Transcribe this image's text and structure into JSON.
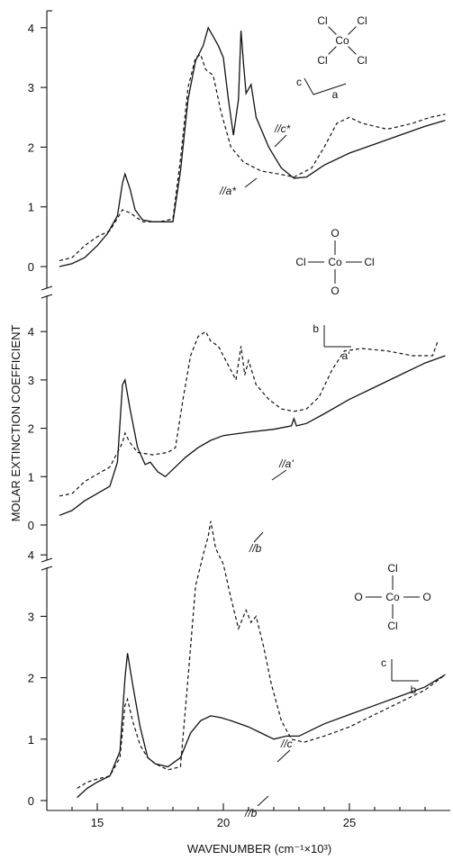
{
  "chart_data": {
    "type": "line",
    "xlabel": "WAVENUMBER (cm⁻¹×10³)",
    "ylabel": "MOLAR EXTINCTION COEFFICIENT",
    "xlim": [
      13,
      29
    ],
    "x_ticks": [
      "15",
      "20",
      "25"
    ],
    "y_ticks": [
      "0",
      "1",
      "2",
      "3",
      "4"
    ],
    "panels": [
      {
        "ylim": [
          -0.2,
          4.4
        ],
        "molecule": {
          "top": [
            "Cl",
            "Cl"
          ],
          "center": "Co",
          "bottom": [
            "Cl",
            "Cl"
          ]
        },
        "axes_labels": [
          "c",
          "a"
        ],
        "series": [
          {
            "name": "//c*",
            "style": "solid",
            "points": [
              [
                13.5,
                0
              ],
              [
                14.0,
                0.05
              ],
              [
                14.5,
                0.15
              ],
              [
                15.0,
                0.35
              ],
              [
                15.4,
                0.55
              ],
              [
                15.8,
                0.85
              ],
              [
                16.0,
                1.4
              ],
              [
                16.1,
                1.55
              ],
              [
                16.3,
                1.3
              ],
              [
                16.5,
                0.95
              ],
              [
                16.8,
                0.78
              ],
              [
                17.2,
                0.75
              ],
              [
                18.0,
                0.75
              ],
              [
                18.3,
                1.6
              ],
              [
                18.6,
                2.8
              ],
              [
                18.9,
                3.45
              ],
              [
                19.2,
                3.7
              ],
              [
                19.4,
                4.0
              ],
              [
                19.6,
                3.85
              ],
              [
                19.8,
                3.7
              ],
              [
                20.0,
                3.5
              ],
              [
                20.2,
                2.8
              ],
              [
                20.4,
                2.2
              ],
              [
                20.6,
                2.8
              ],
              [
                20.7,
                3.95
              ],
              [
                20.8,
                3.4
              ],
              [
                20.9,
                2.9
              ],
              [
                21.1,
                3.05
              ],
              [
                21.3,
                2.5
              ],
              [
                21.8,
                2.0
              ],
              [
                22.3,
                1.65
              ],
              [
                22.8,
                1.48
              ],
              [
                23.3,
                1.5
              ],
              [
                24.0,
                1.7
              ],
              [
                25.0,
                1.9
              ],
              [
                26.0,
                2.05
              ],
              [
                27.0,
                2.2
              ],
              [
                28.0,
                2.35
              ],
              [
                28.8,
                2.45
              ]
            ]
          },
          {
            "name": "//a*",
            "style": "dashed",
            "points": [
              [
                13.5,
                0.1
              ],
              [
                14.0,
                0.15
              ],
              [
                14.5,
                0.35
              ],
              [
                15.0,
                0.5
              ],
              [
                15.5,
                0.6
              ],
              [
                16.0,
                0.95
              ],
              [
                16.3,
                0.9
              ],
              [
                16.8,
                0.75
              ],
              [
                17.5,
                0.75
              ],
              [
                18.0,
                0.8
              ],
              [
                18.3,
                1.8
              ],
              [
                18.6,
                3.0
              ],
              [
                18.9,
                3.5
              ],
              [
                19.1,
                3.55
              ],
              [
                19.3,
                3.3
              ],
              [
                19.6,
                3.2
              ],
              [
                19.9,
                2.6
              ],
              [
                20.3,
                2.0
              ],
              [
                20.8,
                1.75
              ],
              [
                21.5,
                1.6
              ],
              [
                22.2,
                1.55
              ],
              [
                22.8,
                1.5
              ],
              [
                23.5,
                1.65
              ],
              [
                24.0,
                2.0
              ],
              [
                24.5,
                2.4
              ],
              [
                25.0,
                2.5
              ],
              [
                25.5,
                2.4
              ],
              [
                26.5,
                2.3
              ],
              [
                27.5,
                2.4
              ],
              [
                28.2,
                2.5
              ],
              [
                28.8,
                2.55
              ]
            ]
          }
        ]
      },
      {
        "ylim": [
          -0.2,
          4.2
        ],
        "molecule": {
          "top": [
            "O"
          ],
          "center": "Co",
          "left": "Cl",
          "right": "Cl",
          "bottom": [
            "O"
          ]
        },
        "axes_labels": [
          "b",
          "a'"
        ],
        "series": [
          {
            "name": "//b",
            "style": "solid",
            "points": [
              [
                13.5,
                0.2
              ],
              [
                14.0,
                0.3
              ],
              [
                14.5,
                0.5
              ],
              [
                15.0,
                0.65
              ],
              [
                15.5,
                0.8
              ],
              [
                15.8,
                1.3
              ],
              [
                16.0,
                2.9
              ],
              [
                16.1,
                3.0
              ],
              [
                16.3,
                2.4
              ],
              [
                16.6,
                1.6
              ],
              [
                16.9,
                1.25
              ],
              [
                17.1,
                1.3
              ],
              [
                17.4,
                1.1
              ],
              [
                17.7,
                1.0
              ],
              [
                18.0,
                1.15
              ],
              [
                18.5,
                1.4
              ],
              [
                19.0,
                1.6
              ],
              [
                19.5,
                1.75
              ],
              [
                20.0,
                1.85
              ],
              [
                21.0,
                1.92
              ],
              [
                22.0,
                1.98
              ],
              [
                22.7,
                2.05
              ],
              [
                22.8,
                2.2
              ],
              [
                22.9,
                2.05
              ],
              [
                23.3,
                2.1
              ],
              [
                24.0,
                2.3
              ],
              [
                25.0,
                2.6
              ],
              [
                26.0,
                2.85
              ],
              [
                27.0,
                3.1
              ],
              [
                28.0,
                3.35
              ],
              [
                28.8,
                3.5
              ]
            ]
          },
          {
            "name": "//a'",
            "style": "dashed",
            "points": [
              [
                13.5,
                0.6
              ],
              [
                14.0,
                0.65
              ],
              [
                14.5,
                0.9
              ],
              [
                15.0,
                1.05
              ],
              [
                15.5,
                1.2
              ],
              [
                16.0,
                1.7
              ],
              [
                16.1,
                1.9
              ],
              [
                16.3,
                1.7
              ],
              [
                16.6,
                1.5
              ],
              [
                17.2,
                1.45
              ],
              [
                17.8,
                1.5
              ],
              [
                18.1,
                1.6
              ],
              [
                18.4,
                2.6
              ],
              [
                18.7,
                3.5
              ],
              [
                19.0,
                3.9
              ],
              [
                19.3,
                4.0
              ],
              [
                19.5,
                3.8
              ],
              [
                19.8,
                3.7
              ],
              [
                20.2,
                3.3
              ],
              [
                20.5,
                3.0
              ],
              [
                20.7,
                3.7
              ],
              [
                20.85,
                3.1
              ],
              [
                21.0,
                3.4
              ],
              [
                21.3,
                2.9
              ],
              [
                21.8,
                2.6
              ],
              [
                22.3,
                2.4
              ],
              [
                22.8,
                2.35
              ],
              [
                23.3,
                2.4
              ],
              [
                23.8,
                2.65
              ],
              [
                24.3,
                3.2
              ],
              [
                24.8,
                3.6
              ],
              [
                25.5,
                3.65
              ],
              [
                26.5,
                3.6
              ],
              [
                27.5,
                3.5
              ],
              [
                28.3,
                3.5
              ],
              [
                28.5,
                3.8
              ]
            ]
          }
        ]
      },
      {
        "ylim": [
          -0.2,
          4.7
        ],
        "molecule": {
          "top": [
            "Cl"
          ],
          "center": "Co",
          "left": "O",
          "right": "O",
          "bottom": [
            "Cl"
          ]
        },
        "axes_labels": [
          "c",
          "b"
        ],
        "series": [
          {
            "name": "//b",
            "style": "solid",
            "points": [
              [
                14.2,
                0.05
              ],
              [
                14.6,
                0.2
              ],
              [
                15.0,
                0.3
              ],
              [
                15.5,
                0.4
              ],
              [
                15.9,
                0.8
              ],
              [
                16.1,
                2.0
              ],
              [
                16.2,
                2.4
              ],
              [
                16.4,
                1.9
              ],
              [
                16.7,
                1.2
              ],
              [
                17.0,
                0.7
              ],
              [
                17.3,
                0.6
              ],
              [
                17.8,
                0.55
              ],
              [
                18.3,
                0.7
              ],
              [
                18.7,
                1.1
              ],
              [
                19.1,
                1.3
              ],
              [
                19.5,
                1.38
              ],
              [
                19.9,
                1.35
              ],
              [
                20.3,
                1.3
              ],
              [
                21.0,
                1.2
              ],
              [
                21.5,
                1.1
              ],
              [
                22.0,
                1.0
              ],
              [
                22.5,
                1.05
              ],
              [
                23.0,
                1.05
              ],
              [
                23.5,
                1.15
              ],
              [
                24.0,
                1.25
              ],
              [
                25.0,
                1.4
              ],
              [
                26.0,
                1.55
              ],
              [
                27.0,
                1.7
              ],
              [
                28.0,
                1.85
              ],
              [
                28.8,
                2.05
              ]
            ]
          },
          {
            "name": "//c",
            "style": "dashed",
            "points": [
              [
                14.2,
                0.2
              ],
              [
                14.6,
                0.3
              ],
              [
                15.0,
                0.35
              ],
              [
                15.5,
                0.4
              ],
              [
                15.9,
                0.7
              ],
              [
                16.1,
                1.55
              ],
              [
                16.2,
                1.65
              ],
              [
                16.4,
                1.3
              ],
              [
                16.7,
                0.9
              ],
              [
                17.0,
                0.7
              ],
              [
                17.3,
                0.6
              ],
              [
                17.8,
                0.5
              ],
              [
                18.3,
                0.55
              ],
              [
                18.6,
                2.0
              ],
              [
                18.9,
                3.5
              ],
              [
                19.2,
                4.0
              ],
              [
                19.4,
                4.3
              ],
              [
                19.5,
                4.55
              ],
              [
                19.7,
                4.1
              ],
              [
                20.0,
                3.85
              ],
              [
                20.3,
                3.3
              ],
              [
                20.6,
                2.8
              ],
              [
                20.9,
                3.1
              ],
              [
                21.1,
                2.9
              ],
              [
                21.3,
                3.0
              ],
              [
                21.6,
                2.5
              ],
              [
                21.9,
                1.9
              ],
              [
                22.3,
                1.3
              ],
              [
                22.7,
                1.0
              ],
              [
                23.2,
                0.95
              ],
              [
                24.0,
                1.05
              ],
              [
                25.0,
                1.2
              ],
              [
                26.0,
                1.4
              ],
              [
                27.0,
                1.6
              ],
              [
                28.0,
                1.8
              ],
              [
                28.8,
                2.05
              ]
            ]
          }
        ]
      }
    ],
    "annotations": [
      "//c*",
      "//a*",
      "//a'",
      "//b",
      "//c",
      "//b"
    ]
  }
}
